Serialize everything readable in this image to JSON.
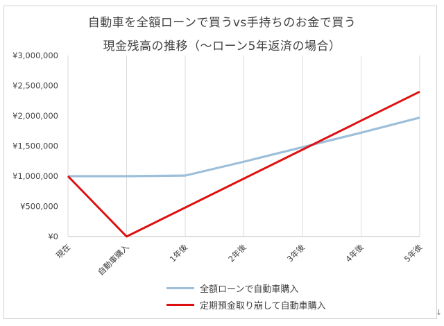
{
  "chart_data": {
    "type": "line",
    "title_line1": "自動車を全額ローンで買うvs手持ちのお金で買う",
    "title_line2": "現金残高の推移（〜ローン5年返済の場合）",
    "categories": [
      "現在",
      "自動車購入",
      "1年後",
      "2年後",
      "3年後",
      "4年後",
      "5年後"
    ],
    "y_tick_labels": [
      "¥0",
      "¥500,000",
      "¥1,000,000",
      "¥1,500,000",
      "¥2,000,000",
      "¥2,500,000",
      "¥3,000,000"
    ],
    "ylim": [
      0,
      3000000
    ],
    "grid": "vertical",
    "legend_position": "bottom",
    "series": [
      {
        "name": "全額ローンで自動車購入",
        "color": "#9dbfd9",
        "values": [
          1000000,
          1000000,
          1010000,
          1240000,
          1480000,
          1720000,
          1970000
        ]
      },
      {
        "name": "定期預金取り崩して自動車購入",
        "color": "#dd1111",
        "values": [
          1000000,
          0,
          480000,
          960000,
          1440000,
          1920000,
          2400000
        ]
      }
    ]
  },
  "corner_mark": "↓"
}
